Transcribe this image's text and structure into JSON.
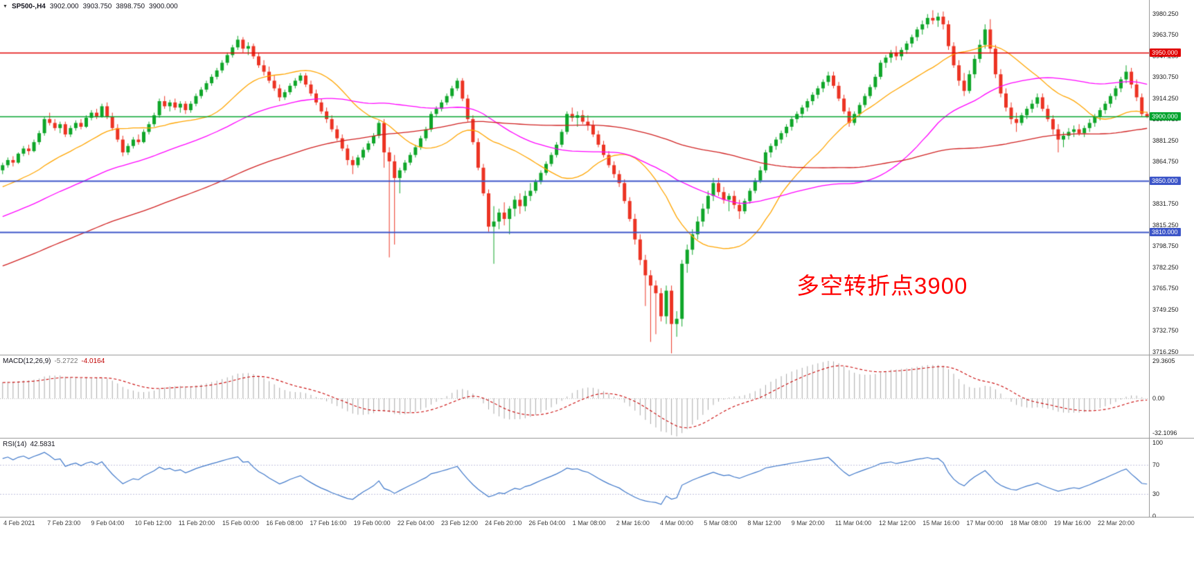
{
  "header": {
    "collapse_icon": "▼",
    "symbol": "SP500-,H4",
    "open": "3902.000",
    "high": "3903.750",
    "low": "3898.750",
    "close": "3900.000"
  },
  "annotation": {
    "text": "多空转折点3900",
    "color": "#FF0000"
  },
  "macd": {
    "label": "MACD(12,26,9)",
    "value1": "-5.2722",
    "value2": "-4.0164",
    "axis": {
      "max": "29.3605",
      "zero": "0.00",
      "min": "-32.1096"
    },
    "colors": {
      "histogram": "#A8A8A8",
      "signal": "#C80000"
    }
  },
  "rsi": {
    "label": "RSI(14)",
    "value": "42.5831",
    "axis": [
      "100",
      "70",
      "30",
      "0"
    ],
    "levels": [
      70,
      30
    ],
    "color": "#3E77C9",
    "level_color": "#C0C0DC"
  },
  "chart_data": {
    "type": "candlestick",
    "symbol": "SP500-",
    "timeframe": "H4",
    "title": "SP500-,H4 3902.000 3903.750 3898.750 3900.000",
    "price_range": [
      3714,
      3991
    ],
    "colors": {
      "up": "#0FA629",
      "down": "#EC3323"
    },
    "price_axis": [
      "3980.250",
      "3963.750",
      "3947.250",
      "3930.750",
      "3914.250",
      "3897.750",
      "3881.250",
      "3864.750",
      "3848.250",
      "3831.750",
      "3815.250",
      "3798.750",
      "3782.250",
      "3765.750",
      "3749.250",
      "3732.750",
      "3716.250"
    ],
    "horizontal_lines": [
      {
        "label": "3950.000",
        "price": 3950,
        "color": "#E00000",
        "width": 1.5
      },
      {
        "label": "3900.000",
        "price": 3900,
        "color": "#00A32E",
        "width": 1.5
      },
      {
        "label": "3850.000",
        "price": 3850,
        "color": "#3C55C8",
        "width": 2
      },
      {
        "label": "3810.000",
        "price": 3810,
        "color": "#3C55C8",
        "width": 2
      }
    ],
    "moving_averages": [
      {
        "name": "fast-ma",
        "period": 20,
        "color": "#FFA500"
      },
      {
        "name": "medium-ma",
        "period": 50,
        "color": "#FF00FF"
      },
      {
        "name": "slow-ma",
        "period": 100,
        "color": "#D02020"
      }
    ],
    "time_axis": [
      "4 Feb 2021",
      "7 Feb 23:00",
      "9 Feb 04:00",
      "10 Feb 12:00",
      "11 Feb 20:00",
      "15 Feb 00:00",
      "16 Feb 08:00",
      "17 Feb 16:00",
      "19 Feb 00:00",
      "22 Feb 04:00",
      "23 Feb 12:00",
      "24 Feb 20:00",
      "26 Feb 04:00",
      "1 Mar 08:00",
      "2 Mar 16:00",
      "4 Mar 00:00",
      "5 Mar 08:00",
      "8 Mar 12:00",
      "9 Mar 20:00",
      "11 Mar 04:00",
      "12 Mar 12:00",
      "15 Mar 16:00",
      "17 Mar 00:00",
      "18 Mar 08:00",
      "19 Mar 16:00",
      "22 Mar 20:00"
    ],
    "candles": [
      [
        3858,
        3864,
        3855,
        3862
      ],
      [
        3862,
        3868,
        3860,
        3866
      ],
      [
        3866,
        3869,
        3861,
        3864
      ],
      [
        3864,
        3872,
        3863,
        3871
      ],
      [
        3871,
        3877,
        3869,
        3875
      ],
      [
        3875,
        3878,
        3870,
        3873
      ],
      [
        3873,
        3882,
        3872,
        3880
      ],
      [
        3880,
        3889,
        3878,
        3887
      ],
      [
        3887,
        3900,
        3885,
        3898
      ],
      [
        3898,
        3903,
        3893,
        3895
      ],
      [
        3895,
        3898,
        3889,
        3891
      ],
      [
        3891,
        3896,
        3887,
        3894
      ],
      [
        3894,
        3896,
        3884,
        3886
      ],
      [
        3886,
        3893,
        3884,
        3891
      ],
      [
        3891,
        3897,
        3889,
        3895
      ],
      [
        3895,
        3898,
        3890,
        3892
      ],
      [
        3892,
        3901,
        3891,
        3899
      ],
      [
        3899,
        3905,
        3897,
        3903
      ],
      [
        3903,
        3906,
        3898,
        3900
      ],
      [
        3900,
        3910,
        3899,
        3908
      ],
      [
        3908,
        3911,
        3898,
        3900
      ],
      [
        3900,
        3903,
        3889,
        3891
      ],
      [
        3891,
        3894,
        3880,
        3882
      ],
      [
        3882,
        3885,
        3869,
        3872
      ],
      [
        3872,
        3879,
        3870,
        3877
      ],
      [
        3877,
        3884,
        3875,
        3882
      ],
      [
        3882,
        3886,
        3878,
        3880
      ],
      [
        3880,
        3890,
        3879,
        3888
      ],
      [
        3888,
        3896,
        3886,
        3894
      ],
      [
        3894,
        3903,
        3892,
        3901
      ],
      [
        3901,
        3914,
        3899,
        3912
      ],
      [
        3912,
        3916,
        3906,
        3908
      ],
      [
        3908,
        3913,
        3904,
        3911
      ],
      [
        3911,
        3914,
        3905,
        3907
      ],
      [
        3907,
        3912,
        3903,
        3910
      ],
      [
        3910,
        3912,
        3902,
        3905
      ],
      [
        3905,
        3912,
        3903,
        3910
      ],
      [
        3910,
        3918,
        3908,
        3916
      ],
      [
        3916,
        3923,
        3914,
        3921
      ],
      [
        3921,
        3928,
        3919,
        3926
      ],
      [
        3926,
        3933,
        3924,
        3931
      ],
      [
        3931,
        3938,
        3929,
        3936
      ],
      [
        3936,
        3944,
        3934,
        3942
      ],
      [
        3942,
        3950,
        3940,
        3948
      ],
      [
        3948,
        3956,
        3946,
        3954
      ],
      [
        3954,
        3963,
        3952,
        3960
      ],
      [
        3960,
        3962,
        3950,
        3953
      ],
      [
        3953,
        3958,
        3948,
        3955
      ],
      [
        3955,
        3957,
        3945,
        3947
      ],
      [
        3947,
        3950,
        3938,
        3940
      ],
      [
        3940,
        3944,
        3932,
        3935
      ],
      [
        3935,
        3939,
        3926,
        3928
      ],
      [
        3928,
        3932,
        3920,
        3922
      ],
      [
        3922,
        3925,
        3912,
        3915
      ],
      [
        3915,
        3921,
        3913,
        3919
      ],
      [
        3919,
        3926,
        3917,
        3924
      ],
      [
        3924,
        3930,
        3922,
        3928
      ],
      [
        3928,
        3934,
        3926,
        3932
      ],
      [
        3932,
        3934,
        3923,
        3925
      ],
      [
        3925,
        3928,
        3916,
        3918
      ],
      [
        3918,
        3921,
        3909,
        3911
      ],
      [
        3911,
        3914,
        3902,
        3904
      ],
      [
        3904,
        3907,
        3895,
        3898
      ],
      [
        3898,
        3901,
        3888,
        3890
      ],
      [
        3890,
        3893,
        3881,
        3883
      ],
      [
        3883,
        3886,
        3873,
        3875
      ],
      [
        3875,
        3878,
        3862,
        3866
      ],
      [
        3866,
        3869,
        3855,
        3862
      ],
      [
        3862,
        3870,
        3860,
        3868
      ],
      [
        3868,
        3876,
        3866,
        3874
      ],
      [
        3874,
        3881,
        3872,
        3879
      ],
      [
        3879,
        3887,
        3877,
        3885
      ],
      [
        3885,
        3897,
        3883,
        3895
      ],
      [
        3895,
        3898,
        3860,
        3872
      ],
      [
        3872,
        3876,
        3790,
        3865
      ],
      [
        3865,
        3870,
        3800,
        3852
      ],
      [
        3852,
        3860,
        3840,
        3858
      ],
      [
        3858,
        3866,
        3856,
        3864
      ],
      [
        3864,
        3872,
        3862,
        3870
      ],
      [
        3870,
        3878,
        3868,
        3876
      ],
      [
        3876,
        3885,
        3874,
        3883
      ],
      [
        3883,
        3892,
        3881,
        3890
      ],
      [
        3890,
        3904,
        3888,
        3902
      ],
      [
        3902,
        3908,
        3900,
        3906
      ],
      [
        3906,
        3913,
        3904,
        3911
      ],
      [
        3911,
        3918,
        3909,
        3916
      ],
      [
        3916,
        3924,
        3914,
        3922
      ],
      [
        3922,
        3930,
        3920,
        3928
      ],
      [
        3928,
        3930,
        3912,
        3914
      ],
      [
        3914,
        3917,
        3896,
        3898
      ],
      [
        3898,
        3901,
        3878,
        3880
      ],
      [
        3880,
        3883,
        3858,
        3860
      ],
      [
        3860,
        3863,
        3838,
        3840
      ],
      [
        3840,
        3843,
        3810,
        3814
      ],
      [
        3814,
        3830,
        3785,
        3818
      ],
      [
        3818,
        3828,
        3812,
        3825
      ],
      [
        3825,
        3833,
        3815,
        3820
      ],
      [
        3820,
        3830,
        3808,
        3828
      ],
      [
        3828,
        3838,
        3822,
        3835
      ],
      [
        3835,
        3840,
        3824,
        3830
      ],
      [
        3830,
        3842,
        3826,
        3838
      ],
      [
        3838,
        3848,
        3834,
        3842
      ],
      [
        3842,
        3851,
        3840,
        3849
      ],
      [
        3849,
        3858,
        3847,
        3856
      ],
      [
        3856,
        3865,
        3854,
        3863
      ],
      [
        3863,
        3872,
        3861,
        3870
      ],
      [
        3870,
        3880,
        3868,
        3878
      ],
      [
        3878,
        3890,
        3876,
        3888
      ],
      [
        3888,
        3904,
        3886,
        3902
      ],
      [
        3902,
        3907,
        3896,
        3899
      ],
      [
        3899,
        3904,
        3892,
        3901
      ],
      [
        3901,
        3905,
        3894,
        3896
      ],
      [
        3896,
        3901,
        3889,
        3893
      ],
      [
        3893,
        3897,
        3884,
        3886
      ],
      [
        3886,
        3889,
        3876,
        3878
      ],
      [
        3878,
        3881,
        3868,
        3870
      ],
      [
        3870,
        3873,
        3860,
        3862
      ],
      [
        3862,
        3865,
        3852,
        3855
      ],
      [
        3855,
        3858,
        3845,
        3848
      ],
      [
        3848,
        3851,
        3832,
        3834
      ],
      [
        3834,
        3837,
        3818,
        3820
      ],
      [
        3820,
        3824,
        3800,
        3804
      ],
      [
        3804,
        3808,
        3784,
        3788
      ],
      [
        3788,
        3792,
        3752,
        3776
      ],
      [
        3776,
        3780,
        3724,
        3768
      ],
      [
        3768,
        3772,
        3730,
        3762
      ],
      [
        3762,
        3766,
        3740,
        3744
      ],
      [
        3744,
        3768,
        3738,
        3764
      ],
      [
        3764,
        3768,
        3715,
        3738
      ],
      [
        3738,
        3748,
        3728,
        3742
      ],
      [
        3742,
        3788,
        3736,
        3785
      ],
      [
        3785,
        3800,
        3778,
        3796
      ],
      [
        3796,
        3812,
        3792,
        3808
      ],
      [
        3808,
        3822,
        3804,
        3818
      ],
      [
        3818,
        3832,
        3814,
        3828
      ],
      [
        3828,
        3842,
        3824,
        3838
      ],
      [
        3838,
        3852,
        3834,
        3848
      ],
      [
        3848,
        3852,
        3838,
        3841
      ],
      [
        3841,
        3845,
        3832,
        3835
      ],
      [
        3835,
        3840,
        3826,
        3838
      ],
      [
        3838,
        3842,
        3828,
        3831
      ],
      [
        3831,
        3835,
        3820,
        3826
      ],
      [
        3826,
        3836,
        3824,
        3834
      ],
      [
        3834,
        3844,
        3832,
        3842
      ],
      [
        3842,
        3852,
        3840,
        3850
      ],
      [
        3850,
        3861,
        3848,
        3858
      ],
      [
        3858,
        3874,
        3856,
        3872
      ],
      [
        3872,
        3879,
        3868,
        3877
      ],
      [
        3877,
        3884,
        3874,
        3882
      ],
      [
        3882,
        3889,
        3879,
        3887
      ],
      [
        3887,
        3894,
        3884,
        3892
      ],
      [
        3892,
        3900,
        3889,
        3898
      ],
      [
        3898,
        3904,
        3895,
        3902
      ],
      [
        3902,
        3909,
        3899,
        3907
      ],
      [
        3907,
        3914,
        3904,
        3912
      ],
      [
        3912,
        3919,
        3909,
        3917
      ],
      [
        3917,
        3924,
        3914,
        3922
      ],
      [
        3922,
        3929,
        3919,
        3927
      ],
      [
        3927,
        3935,
        3924,
        3932
      ],
      [
        3932,
        3935,
        3922,
        3924
      ],
      [
        3924,
        3927,
        3912,
        3914
      ],
      [
        3914,
        3917,
        3902,
        3904
      ],
      [
        3904,
        3907,
        3892,
        3895
      ],
      [
        3895,
        3904,
        3893,
        3902
      ],
      [
        3902,
        3911,
        3900,
        3909
      ],
      [
        3909,
        3918,
        3907,
        3916
      ],
      [
        3916,
        3925,
        3914,
        3923
      ],
      [
        3923,
        3933,
        3921,
        3931
      ],
      [
        3931,
        3944,
        3929,
        3942
      ],
      [
        3942,
        3948,
        3938,
        3946
      ],
      [
        3946,
        3952,
        3942,
        3950
      ],
      [
        3950,
        3955,
        3944,
        3947
      ],
      [
        3947,
        3954,
        3944,
        3952
      ],
      [
        3952,
        3959,
        3949,
        3957
      ],
      [
        3957,
        3964,
        3954,
        3962
      ],
      [
        3962,
        3970,
        3959,
        3968
      ],
      [
        3968,
        3975,
        3964,
        3972
      ],
      [
        3972,
        3980,
        3969,
        3977
      ],
      [
        3977,
        3983,
        3972,
        3975
      ],
      [
        3975,
        3981,
        3970,
        3978
      ],
      [
        3978,
        3982,
        3968,
        3972
      ],
      [
        3972,
        3975,
        3952,
        3955
      ],
      [
        3955,
        3958,
        3938,
        3940
      ],
      [
        3940,
        3944,
        3924,
        3928
      ],
      [
        3928,
        3934,
        3916,
        3920
      ],
      [
        3920,
        3936,
        3918,
        3933
      ],
      [
        3933,
        3948,
        3930,
        3945
      ],
      [
        3945,
        3960,
        3942,
        3956
      ],
      [
        3956,
        3972,
        3953,
        3968
      ],
      [
        3968,
        3976,
        3950,
        3953
      ],
      [
        3953,
        3956,
        3930,
        3933
      ],
      [
        3933,
        3937,
        3915,
        3918
      ],
      [
        3918,
        3922,
        3904,
        3907
      ],
      [
        3907,
        3911,
        3894,
        3898
      ],
      [
        3898,
        3903,
        3888,
        3895
      ],
      [
        3895,
        3903,
        3893,
        3901
      ],
      [
        3901,
        3908,
        3898,
        3906
      ],
      [
        3906,
        3913,
        3903,
        3910
      ],
      [
        3910,
        3918,
        3907,
        3915
      ],
      [
        3915,
        3918,
        3904,
        3906
      ],
      [
        3906,
        3909,
        3896,
        3898
      ],
      [
        3898,
        3901,
        3886,
        3890
      ],
      [
        3890,
        3894,
        3872,
        3882
      ],
      [
        3882,
        3888,
        3876,
        3885
      ],
      [
        3885,
        3891,
        3882,
        3888
      ],
      [
        3888,
        3893,
        3884,
        3890
      ],
      [
        3890,
        3894,
        3885,
        3887
      ],
      [
        3887,
        3893,
        3884,
        3891
      ],
      [
        3891,
        3898,
        3888,
        3895
      ],
      [
        3895,
        3902,
        3892,
        3900
      ],
      [
        3900,
        3907,
        3897,
        3905
      ],
      [
        3905,
        3912,
        3902,
        3910
      ],
      [
        3910,
        3918,
        3907,
        3916
      ],
      [
        3916,
        3924,
        3913,
        3922
      ],
      [
        3922,
        3931,
        3919,
        3929
      ],
      [
        3929,
        3940,
        3926,
        3935
      ],
      [
        3935,
        3938,
        3922,
        3925
      ],
      [
        3925,
        3929,
        3912,
        3915
      ],
      [
        3915,
        3918,
        3900,
        3902
      ],
      [
        3902,
        3903.75,
        3898.75,
        3900
      ]
    ]
  }
}
